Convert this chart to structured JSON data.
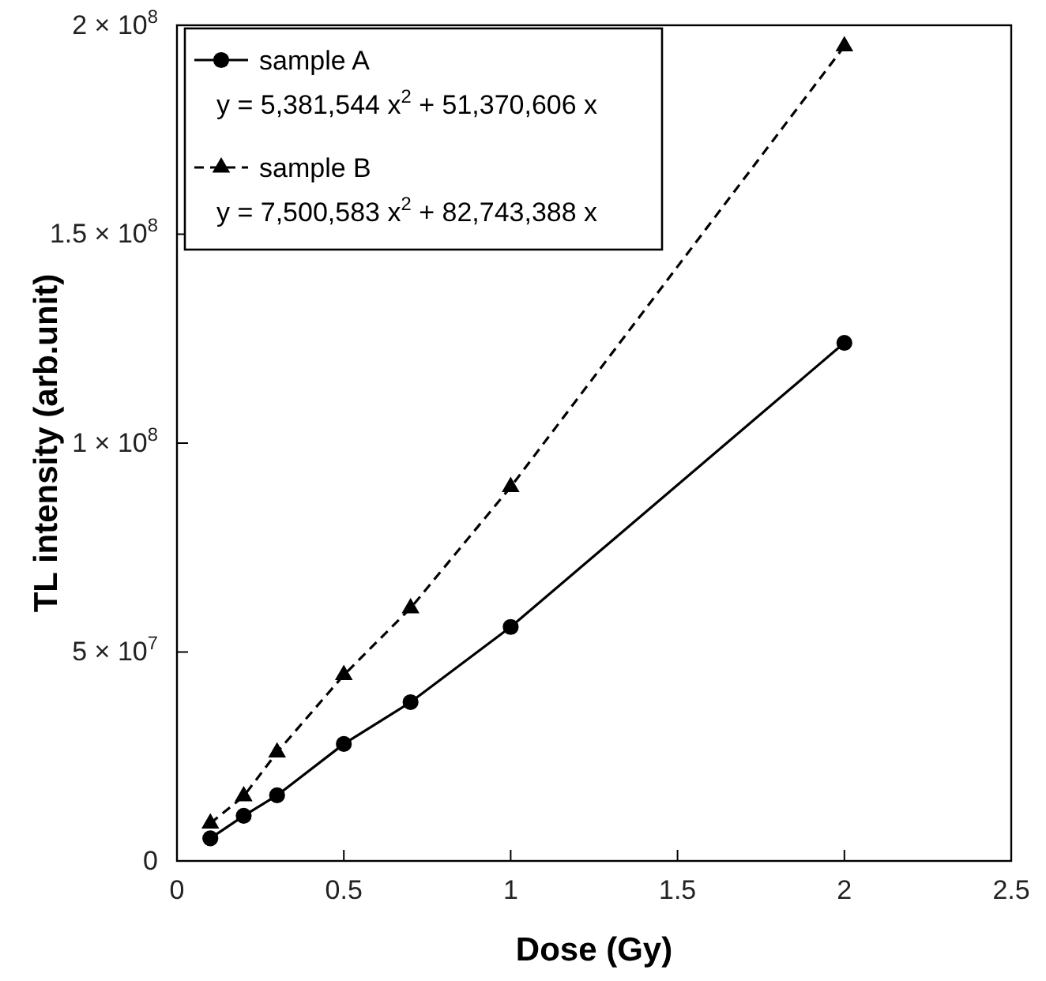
{
  "chart_data": {
    "type": "line",
    "xlabel": "Dose (Gy)",
    "ylabel": "TL intensity (arb.unit)",
    "x": [
      0.1,
      0.2,
      0.3,
      0.5,
      0.7,
      1,
      2
    ],
    "series": [
      {
        "name": "sample A",
        "color": "#000000",
        "marker": "circle",
        "line_style": "solid",
        "values": [
          5400000,
          10800000,
          15700000,
          28000000,
          38000000,
          56000000,
          124000000
        ]
      },
      {
        "name": "sample B",
        "color": "#000000",
        "marker": "triangle",
        "line_style": "dashed",
        "values": [
          9000000,
          15500000,
          26000000,
          44500000,
          60500000,
          89500000,
          195000000
        ]
      }
    ],
    "annotations": [
      "y = 5,381,544 x$^{2}$ + 51,370,606 x",
      "y = 7,500,583 x$^{2}$ + 82,743,388 x"
    ],
    "xlim": [
      0,
      2.5
    ],
    "xticks": [
      0,
      0.5,
      1,
      1.5,
      2,
      2.5
    ],
    "ylim": [
      0,
      200000000
    ],
    "yticks": [
      0,
      {
        "value": 50000000,
        "label": "5 × 10$^{7}$"
      },
      {
        "value": 100000000,
        "label": "1 × 10$^{8}$"
      },
      {
        "value": 150000000,
        "label": "1.5 × 10$^{8}$"
      },
      {
        "value": 200000000,
        "label": "2 × 10$^{8}$"
      }
    ],
    "grid": false,
    "legend": "top left"
  }
}
